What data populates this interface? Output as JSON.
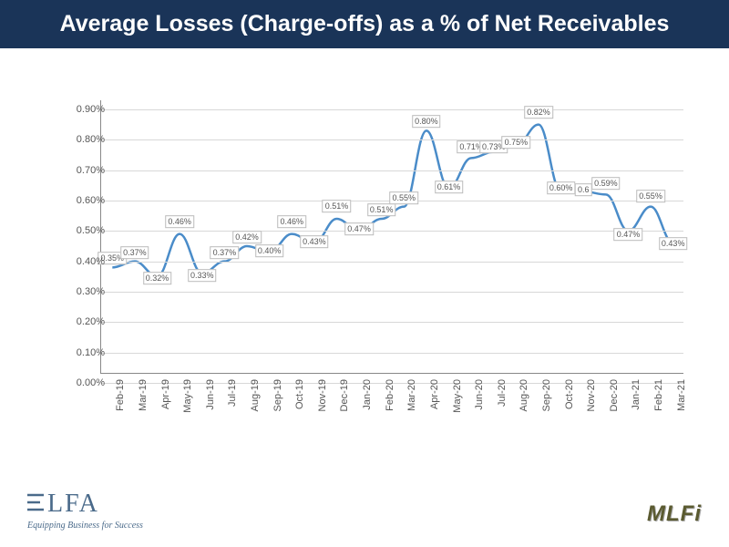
{
  "title": "Average Losses (Charge-offs) as a % of Net Receivables",
  "chart": {
    "type": "line",
    "x_labels": [
      "Feb-19",
      "Mar-19",
      "Apr-19",
      "May-19",
      "Jun-19",
      "Jul-19",
      "Aug-19",
      "Sep-19",
      "Oct-19",
      "Nov-19",
      "Dec-19",
      "Jan-20",
      "Feb-20",
      "Mar-20",
      "Apr-20",
      "May-20",
      "Jun-20",
      "Jul-20",
      "Aug-20",
      "Sep-20",
      "Oct-20",
      "Nov-20",
      "Dec-20",
      "Jan-21",
      "Feb-21",
      "Mar-21"
    ],
    "values": [
      0.35,
      0.37,
      0.32,
      0.46,
      0.33,
      0.37,
      0.42,
      0.4,
      0.46,
      0.43,
      0.51,
      0.47,
      0.51,
      0.55,
      0.8,
      0.61,
      0.71,
      0.73,
      0.75,
      0.82,
      0.6,
      0.6,
      0.59,
      0.47,
      0.55,
      0.43
    ],
    "value_labels": [
      "0.35%",
      "0.37%",
      "0.32%",
      "0.46%",
      "0.33%",
      "0.37%",
      "0.42%",
      "0.40%",
      "0.46%",
      "0.43%",
      "0.51%",
      "0.47%",
      "0.51%",
      "0.55%",
      "0.80%",
      "0.61%",
      "0.71%",
      "0.73%",
      "0.75%",
      "0.82%",
      "0.60%",
      "0.6",
      "0.59%",
      "0.47%",
      "0.55%",
      "0.43%"
    ],
    "label_offsets": [
      0,
      0,
      12,
      -4,
      12,
      0,
      0,
      8,
      -4,
      8,
      -4,
      8,
      0,
      0,
      0,
      8,
      -2,
      4,
      6,
      -4,
      6,
      8,
      -2,
      14,
      -2,
      10
    ],
    "ylim": [
      0,
      0.9
    ],
    "y_ticks": [
      0.0,
      0.1,
      0.2,
      0.3,
      0.4,
      0.5,
      0.6,
      0.7,
      0.8,
      0.9
    ],
    "y_tick_labels": [
      "0.00%",
      "0.10%",
      "0.20%",
      "0.30%",
      "0.40%",
      "0.50%",
      "0.60%",
      "0.70%",
      "0.80%",
      "0.90%"
    ],
    "line_color": "#4a8cc9",
    "line_width": 2.5,
    "grid_color": "#d8d8d8",
    "background_color": "#ffffff",
    "label_fontsize": 9
  },
  "elfa_tagline": "Equipping Business for Success",
  "mlfi_text": "MLFi"
}
